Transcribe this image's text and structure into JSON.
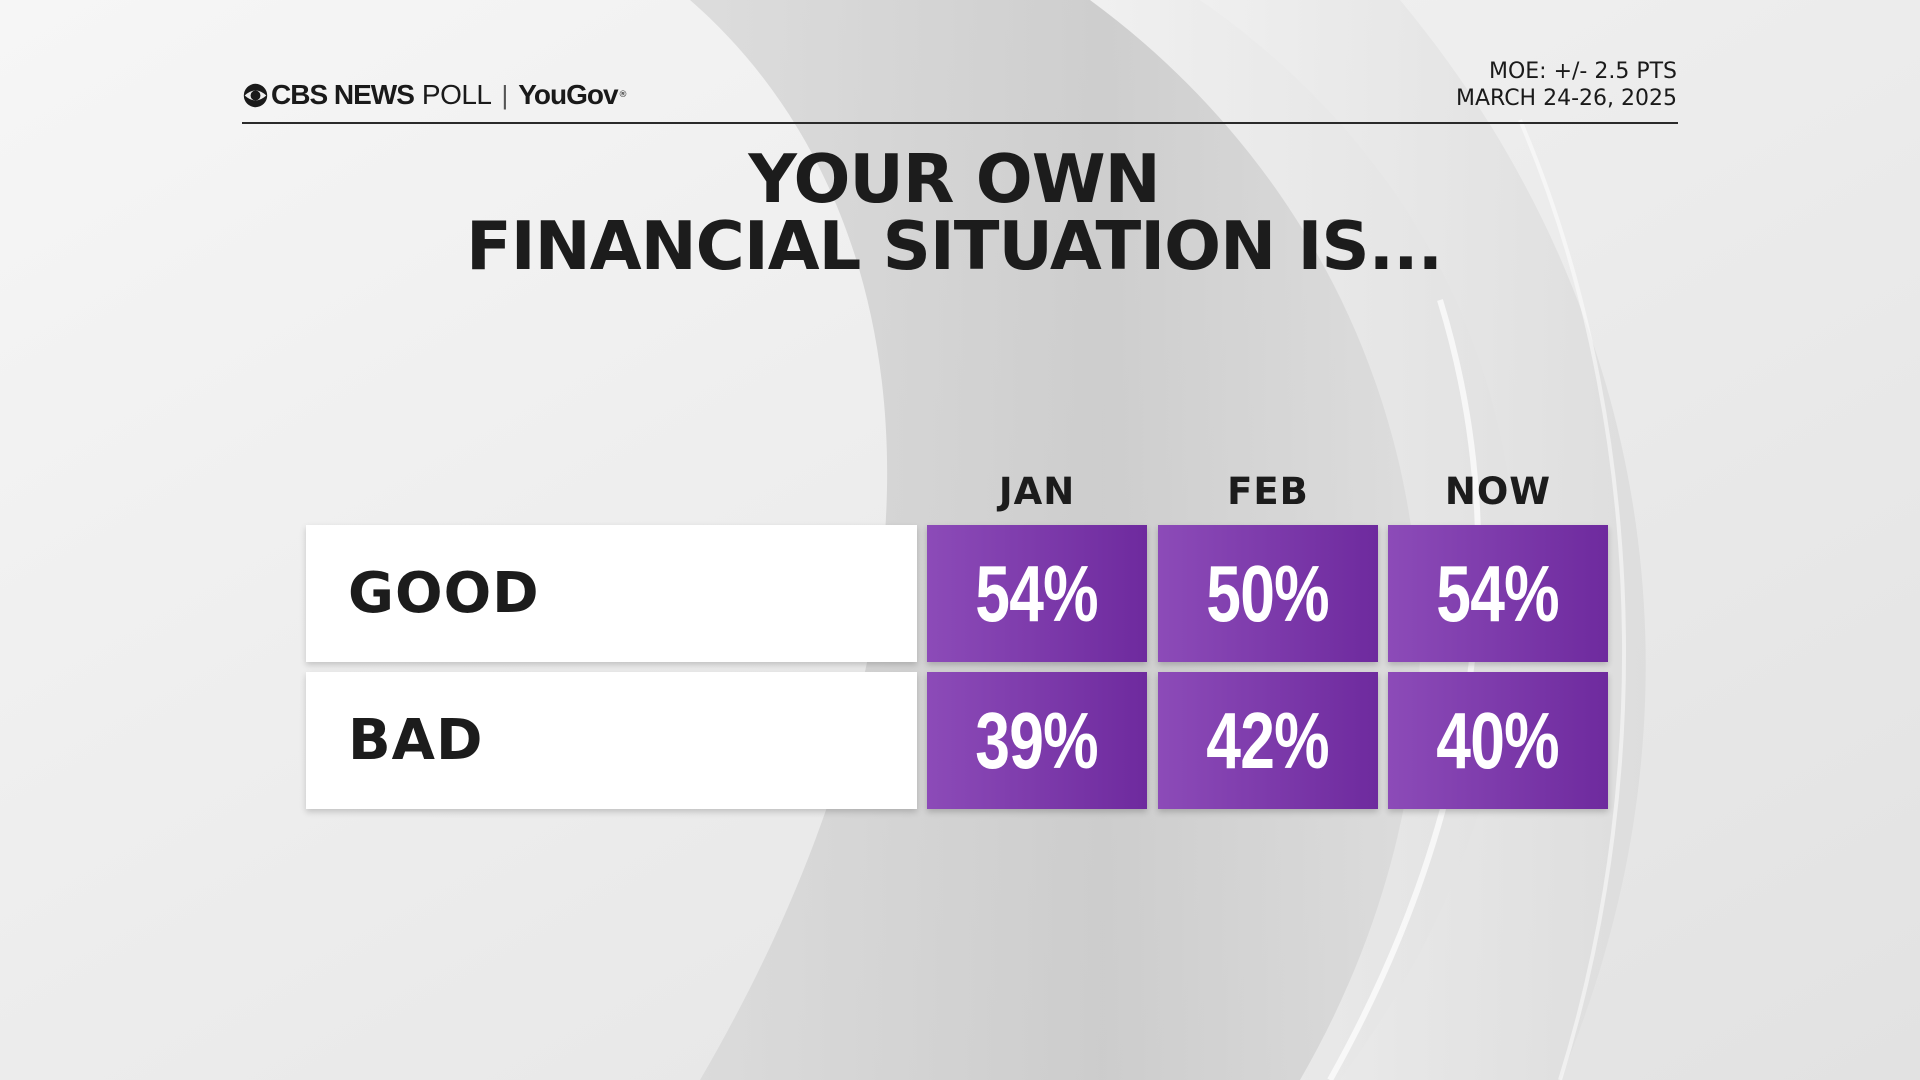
{
  "header": {
    "brand_network": "CBS NEWS",
    "brand_poll": "POLL",
    "brand_separator": "|",
    "brand_partner": "YouGov",
    "brand_partner_mark": "®",
    "moe": "MOE: +/- 2.5 PTS",
    "dates": "MARCH 24-26, 2025"
  },
  "title": {
    "line1": "YOUR OWN",
    "line2": "FINANCIAL SITUATION IS..."
  },
  "icons": {
    "logo": "cbs-eye-logo"
  },
  "colors": {
    "cell_start": "#8c4bb8",
    "cell_end": "#6e2a9e",
    "text": "#1c1c1c"
  },
  "chart_data": {
    "type": "table",
    "title": "YOUR OWN FINANCIAL SITUATION IS...",
    "columns": [
      "JAN",
      "FEB",
      "NOW"
    ],
    "rows": [
      {
        "label": "GOOD",
        "values": [
          "54%",
          "50%",
          "54%"
        ]
      },
      {
        "label": "BAD",
        "values": [
          "39%",
          "42%",
          "40%"
        ]
      }
    ]
  }
}
